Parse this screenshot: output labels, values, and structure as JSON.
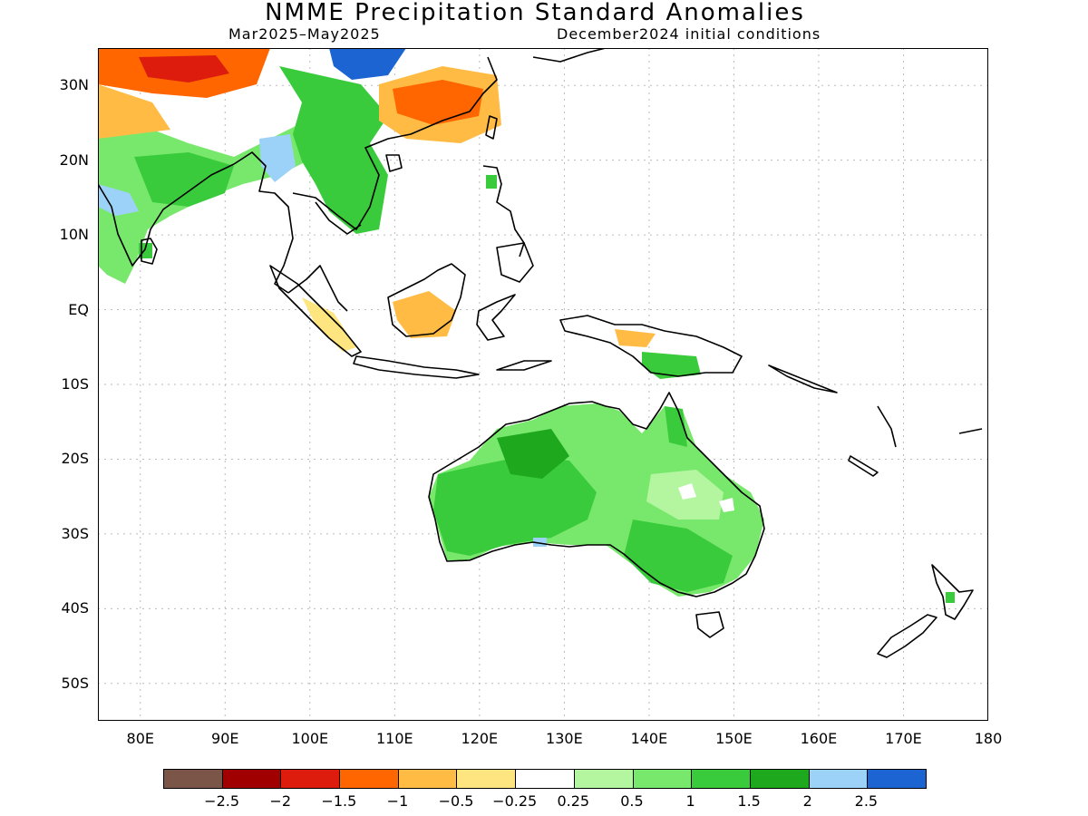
{
  "header": {
    "title": "NMME Precipitation Standard Anomalies",
    "subtitle_left": "Mar2025–May2025",
    "subtitle_right": "December2024 initial conditions"
  },
  "map": {
    "lon_range": [
      75,
      180
    ],
    "lat_range": [
      -55,
      35
    ],
    "lat_ticks": [
      {
        "value": 30,
        "label": "30N"
      },
      {
        "value": 20,
        "label": "20N"
      },
      {
        "value": 10,
        "label": "10N"
      },
      {
        "value": 0,
        "label": "EQ"
      },
      {
        "value": -10,
        "label": "10S"
      },
      {
        "value": -20,
        "label": "20S"
      },
      {
        "value": -30,
        "label": "30S"
      },
      {
        "value": -40,
        "label": "40S"
      },
      {
        "value": -50,
        "label": "50S"
      }
    ],
    "lon_ticks": [
      {
        "value": 80,
        "label": "80E"
      },
      {
        "value": 90,
        "label": "90E"
      },
      {
        "value": 100,
        "label": "100E"
      },
      {
        "value": 110,
        "label": "110E"
      },
      {
        "value": 120,
        "label": "120E"
      },
      {
        "value": 130,
        "label": "130E"
      },
      {
        "value": 140,
        "label": "140E"
      },
      {
        "value": 150,
        "label": "150E"
      },
      {
        "value": 160,
        "label": "160E"
      },
      {
        "value": 170,
        "label": "170E"
      },
      {
        "value": 180,
        "label": "180"
      }
    ],
    "grid": true
  },
  "colorbar": {
    "colors": [
      "#7b5547",
      "#a00000",
      "#dd1c0e",
      "#ff6600",
      "#ffbb44",
      "#ffe57f",
      "#ffffff",
      "#b4f5a0",
      "#78e86c",
      "#3acb3c",
      "#1ea81e",
      "#9cd2f8",
      "#1c64d2"
    ],
    "labels": [
      "−2.5",
      "−2",
      "−1.5",
      "−1",
      "−0.5",
      "−0.25",
      "0.25",
      "0.5",
      "1",
      "1.5",
      "2",
      "2.5"
    ]
  }
}
